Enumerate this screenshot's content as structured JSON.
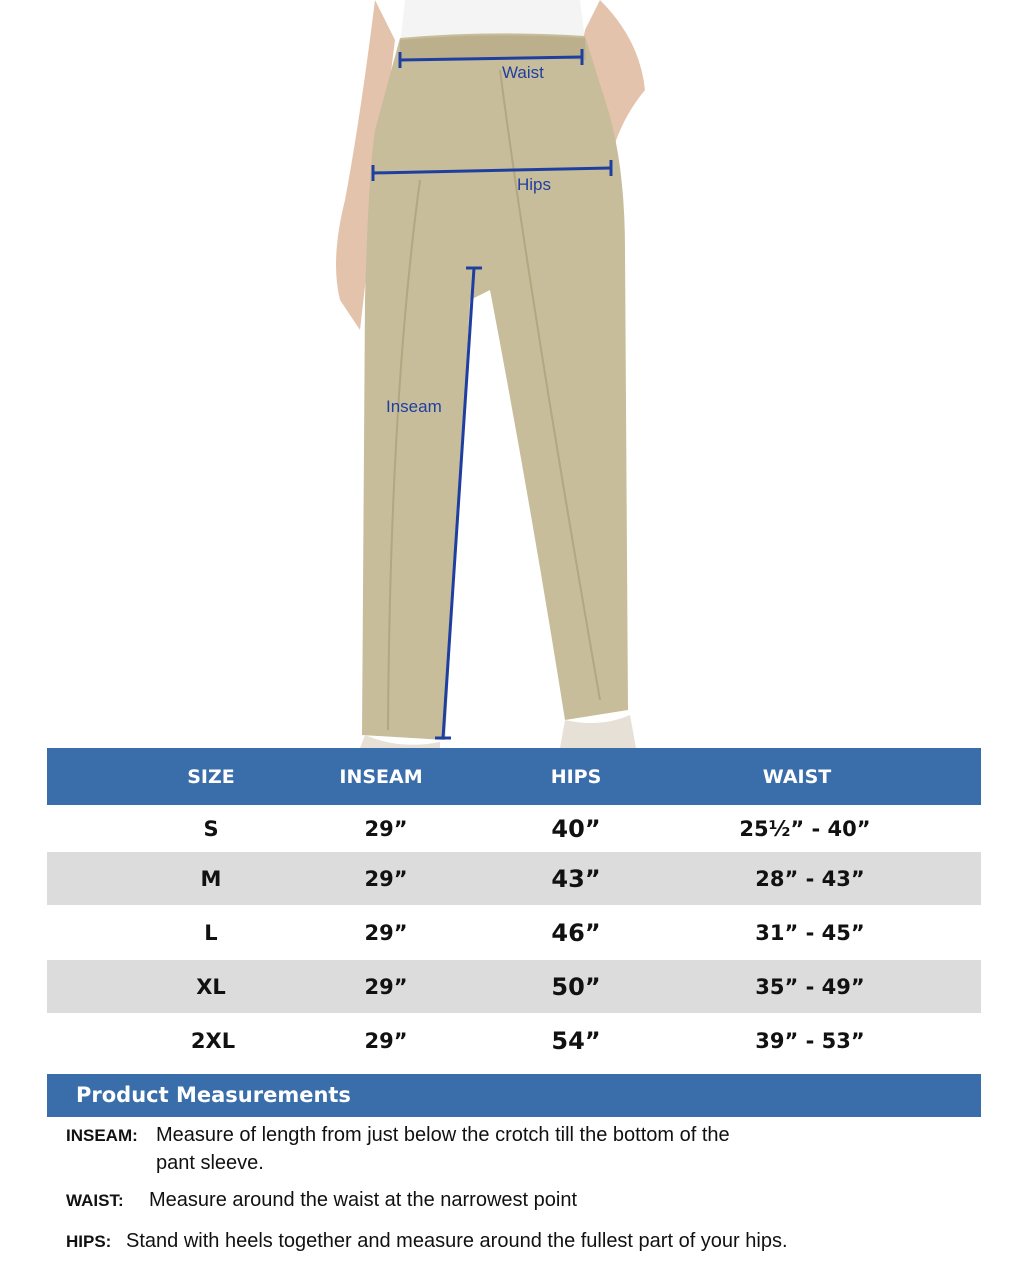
{
  "photo": {
    "labels": {
      "waist": "Waist",
      "hips": "Hips",
      "inseam": "Inseam"
    },
    "colors": {
      "garment": "#c8bd9a",
      "measure_line": "#1f3fa0"
    }
  },
  "table": {
    "headers": [
      "SIZE",
      "INSEAM",
      "HIPS",
      "WAIST"
    ],
    "rows": [
      [
        "S",
        "29”",
        "40”",
        "25½” - 40”"
      ],
      [
        "M",
        "29”",
        "43”",
        "28” - 43”"
      ],
      [
        "L",
        "29”",
        "46”",
        "31” - 45”"
      ],
      [
        "XL",
        "29”",
        "50”",
        "35” - 49”"
      ],
      [
        "2XL",
        "29”",
        "54”",
        "39” - 53”"
      ]
    ],
    "colors": {
      "header": "#3a6eab",
      "alt_row": "#dcdcdc"
    }
  },
  "measurements": {
    "title": "Product Measurements",
    "items": [
      {
        "term": "INSEAM:",
        "text": "Measure of length from just below the crotch till the bottom of the",
        "text2": "pant sleeve."
      },
      {
        "term": "WAIST:",
        "text": "Measure around the waist at the narrowest point"
      },
      {
        "term": "HIPS:",
        "text": "Stand with heels together and measure around the fullest part of your hips."
      }
    ]
  }
}
